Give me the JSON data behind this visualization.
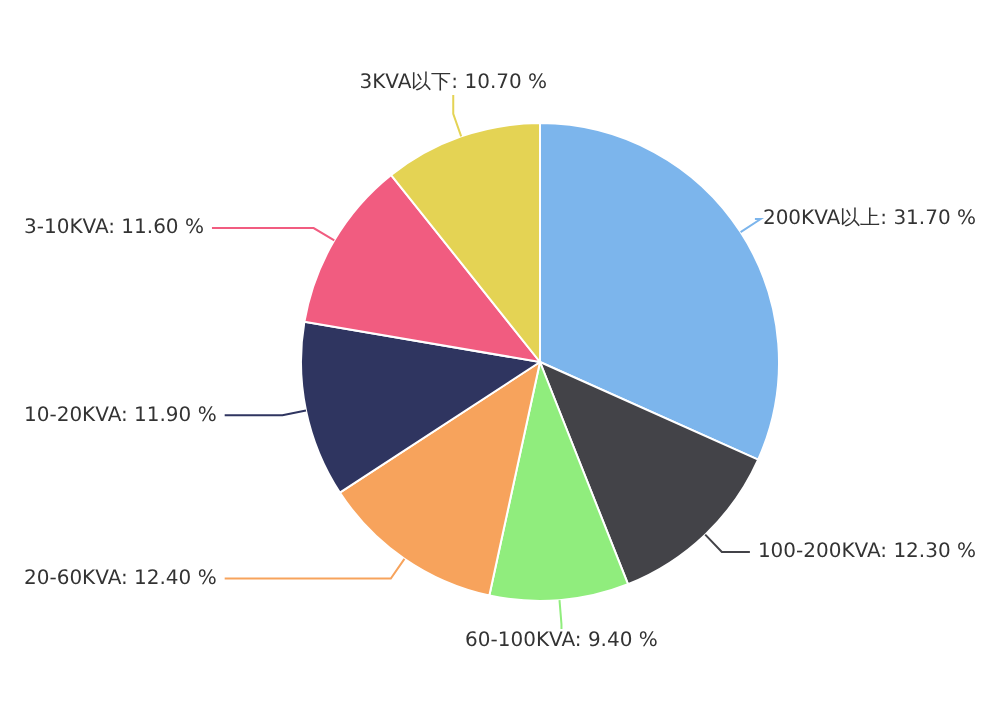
{
  "chart_data": {
    "type": "pie",
    "categories": [
      "200KVA以上",
      "100-200KVA",
      "60-100KVA",
      "20-60KVA",
      "10-20KVA",
      "3-10KVA",
      "3KVA以下"
    ],
    "values": [
      31.7,
      12.3,
      9.4,
      12.4,
      11.9,
      11.6,
      10.7
    ],
    "value_labels": [
      "31.70 %",
      "12.30 %",
      "9.40 %",
      "12.40 %",
      "11.90 %",
      "11.60 %",
      "10.70 %"
    ],
    "colors": [
      "#7cb5ec",
      "#434348",
      "#90ed7d",
      "#f7a35c",
      "#2f3560",
      "#f15c80",
      "#e4d354"
    ],
    "legend": false
  }
}
